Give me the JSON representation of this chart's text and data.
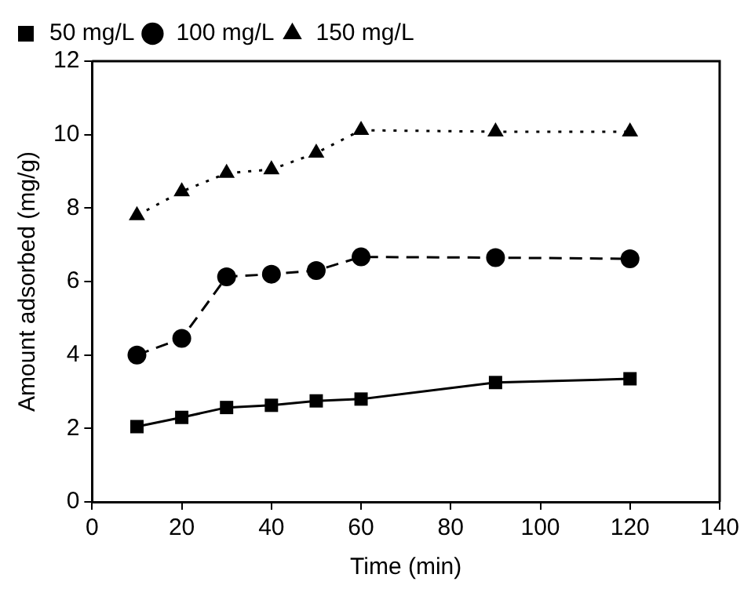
{
  "chart_data": {
    "type": "line",
    "xlabel": "Time (min)",
    "ylabel": "Amount adsorbed (mg/g)",
    "x": [
      10,
      20,
      30,
      40,
      50,
      60,
      90,
      120
    ],
    "series": [
      {
        "name": "50 mg/L",
        "color": "#000000",
        "marker": "square",
        "line_style": "solid",
        "values": [
          2.05,
          2.3,
          2.57,
          2.63,
          2.75,
          2.8,
          3.25,
          3.35
        ]
      },
      {
        "name": "100 mg/L",
        "color": "#000000",
        "marker": "circle",
        "line_style": "dashed",
        "values": [
          4.0,
          4.45,
          6.13,
          6.2,
          6.3,
          6.67,
          6.65,
          6.62
        ]
      },
      {
        "name": "150 mg/L",
        "color": "#000000",
        "marker": "triangle",
        "line_style": "dotted",
        "values": [
          7.8,
          8.45,
          8.95,
          9.05,
          9.5,
          10.12,
          10.08,
          10.08
        ]
      }
    ],
    "xlim": [
      0,
      140
    ],
    "xticks": [
      0,
      20,
      40,
      60,
      80,
      100,
      120,
      140
    ],
    "ylim": [
      0,
      12
    ],
    "yticks": [
      0,
      2,
      4,
      6,
      8,
      10,
      12
    ],
    "grid": false,
    "legend": "top left"
  }
}
